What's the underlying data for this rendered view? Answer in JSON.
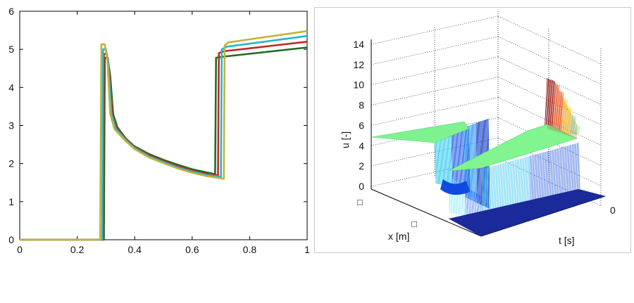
{
  "chart_data": [
    {
      "type": "line",
      "title": "",
      "xlabel": "",
      "ylabel": "",
      "xlim": [
        0,
        1
      ],
      "ylim": [
        0,
        6
      ],
      "x_ticks": [
        "0",
        "0.2",
        "0.4",
        "0.6",
        "0.8",
        "1"
      ],
      "y_ticks": [
        "0",
        "1",
        "2",
        "3",
        "4",
        "5",
        "6"
      ],
      "grid": false,
      "series": [
        {
          "color": "#1f6e1f",
          "points": [
            [
              0,
              0
            ],
            [
              0.293,
              0
            ],
            [
              0.296,
              4.78
            ],
            [
              0.306,
              4.78
            ],
            [
              0.315,
              4.3
            ],
            [
              0.325,
              3.3
            ],
            [
              0.34,
              2.95
            ],
            [
              0.37,
              2.65
            ],
            [
              0.4,
              2.45
            ],
            [
              0.45,
              2.25
            ],
            [
              0.5,
              2.1
            ],
            [
              0.55,
              1.97
            ],
            [
              0.6,
              1.85
            ],
            [
              0.65,
              1.77
            ],
            [
              0.68,
              1.72
            ],
            [
              0.683,
              4.78
            ],
            [
              0.7,
              4.8
            ],
            [
              1.0,
              5.05
            ]
          ]
        },
        {
          "color": "#c02828",
          "points": [
            [
              0,
              0
            ],
            [
              0.29,
              0
            ],
            [
              0.293,
              4.88
            ],
            [
              0.303,
              4.88
            ],
            [
              0.312,
              4.4
            ],
            [
              0.322,
              3.3
            ],
            [
              0.337,
              2.93
            ],
            [
              0.37,
              2.63
            ],
            [
              0.4,
              2.43
            ],
            [
              0.45,
              2.22
            ],
            [
              0.5,
              2.07
            ],
            [
              0.55,
              1.93
            ],
            [
              0.6,
              1.82
            ],
            [
              0.65,
              1.73
            ],
            [
              0.69,
              1.69
            ],
            [
              0.693,
              4.9
            ],
            [
              0.71,
              4.95
            ],
            [
              1.0,
              5.2
            ]
          ]
        },
        {
          "color": "#26b5c8",
          "points": [
            [
              0,
              0
            ],
            [
              0.287,
              0
            ],
            [
              0.29,
              5.0
            ],
            [
              0.3,
              5.0
            ],
            [
              0.309,
              4.55
            ],
            [
              0.319,
              3.3
            ],
            [
              0.334,
              2.92
            ],
            [
              0.37,
              2.61
            ],
            [
              0.4,
              2.41
            ],
            [
              0.45,
              2.19
            ],
            [
              0.5,
              2.04
            ],
            [
              0.55,
              1.9
            ],
            [
              0.6,
              1.79
            ],
            [
              0.65,
              1.7
            ],
            [
              0.7,
              1.65
            ],
            [
              0.703,
              5.0
            ],
            [
              0.72,
              5.07
            ],
            [
              1.0,
              5.35
            ]
          ]
        },
        {
          "color": "#c2b23a",
          "points": [
            [
              0,
              0
            ],
            [
              0.28,
              0
            ],
            [
              0.284,
              5.13
            ],
            [
              0.296,
              5.13
            ],
            [
              0.305,
              4.7
            ],
            [
              0.315,
              3.3
            ],
            [
              0.33,
              2.9
            ],
            [
              0.37,
              2.58
            ],
            [
              0.4,
              2.38
            ],
            [
              0.45,
              2.16
            ],
            [
              0.5,
              2.01
            ],
            [
              0.55,
              1.87
            ],
            [
              0.6,
              1.76
            ],
            [
              0.65,
              1.67
            ],
            [
              0.71,
              1.6
            ],
            [
              0.713,
              5.1
            ],
            [
              0.725,
              5.18
            ],
            [
              1.0,
              5.48
            ]
          ]
        }
      ]
    },
    {
      "type": "surface3d",
      "xlabel": "x [m]",
      "ylabel": "t [s]",
      "zlabel": "u [-]",
      "z_ticks": [
        "0",
        "2",
        "4",
        "6",
        "8",
        "10",
        "12",
        "14"
      ],
      "zlim": [
        0,
        14
      ],
      "x_ticks": [
        "□",
        "□"
      ],
      "t_ticks": [
        "0"
      ],
      "colormap": [
        "#00008f",
        "#0050ff",
        "#00dfff",
        "#70ff8f",
        "#ffef00",
        "#ff5000",
        "#800000"
      ]
    }
  ]
}
